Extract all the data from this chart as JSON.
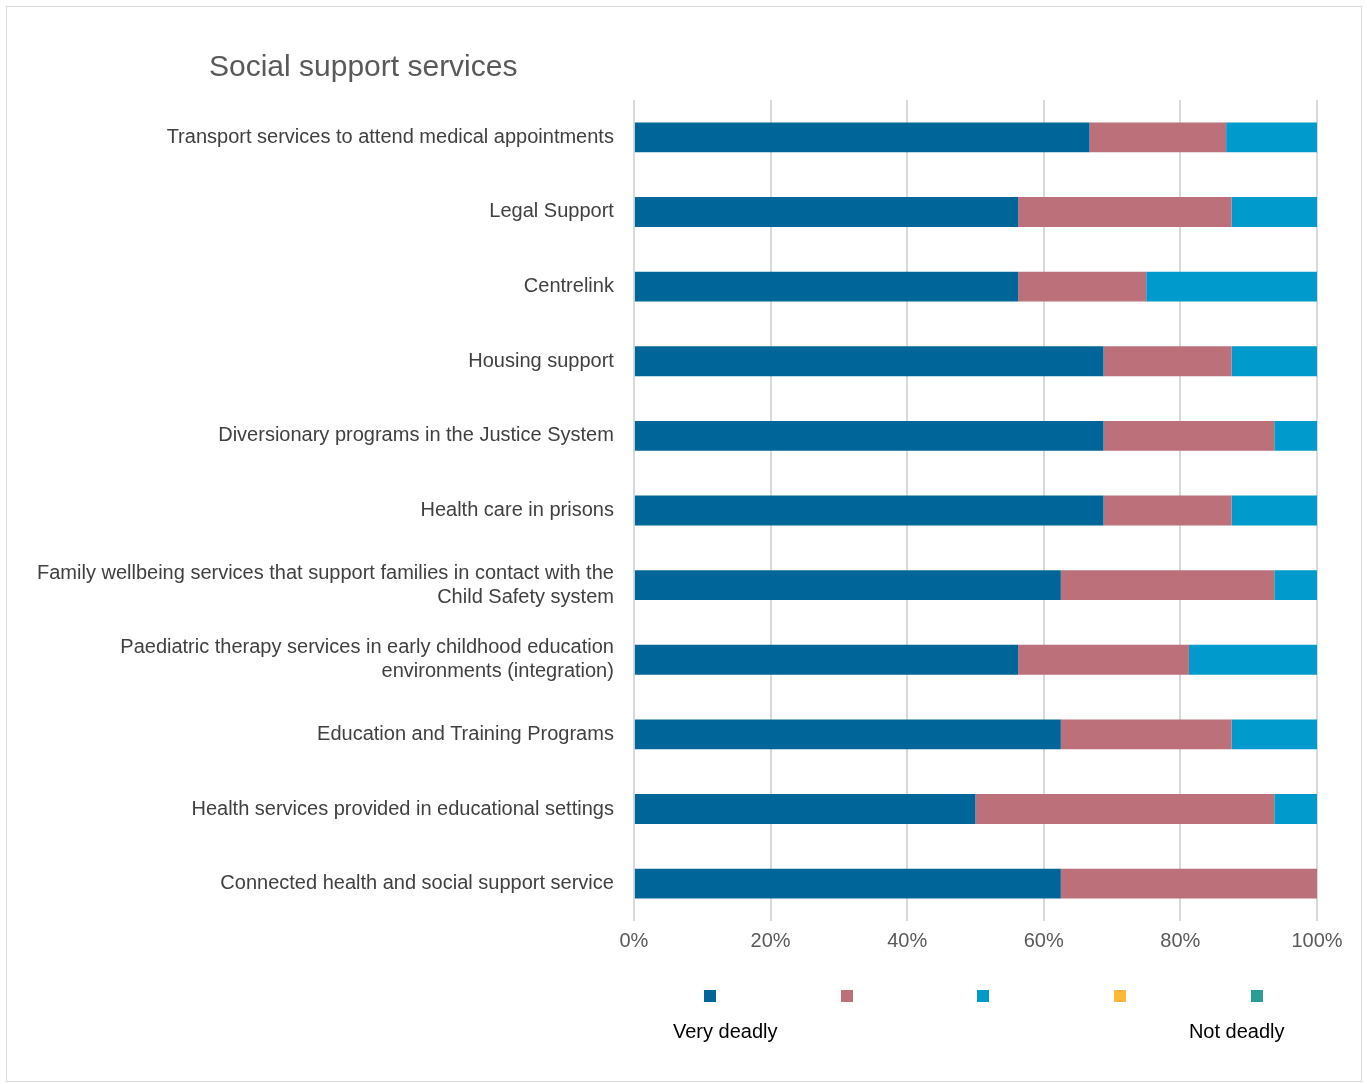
{
  "chart_data": {
    "type": "bar",
    "orientation": "horizontal",
    "stacked": true,
    "title": "Social support services",
    "categories": [
      "Transport services to attend medical appointments",
      "Legal Support",
      "Centrelink",
      "Housing support",
      "Diversionary programs in the Justice System",
      "Health care in prisons",
      "Family wellbeing services that support families in contact with the Child Safety system",
      "Paediatric therapy services in early childhood education environments (integration)",
      "Education and Training Programs",
      "Health services provided in educational settings",
      "Connected health and social support service"
    ],
    "series": [
      {
        "color": "#00669a",
        "values": [
          66.7,
          56.25,
          56.25,
          68.75,
          68.75,
          68.75,
          62.5,
          56.25,
          62.5,
          50,
          62.5
        ]
      },
      {
        "color": "#bb707a",
        "values": [
          20,
          31.25,
          18.75,
          18.75,
          25,
          18.75,
          31.25,
          25,
          25,
          43.75,
          37.5
        ]
      },
      {
        "color": "#009bcc",
        "values": [
          13.3,
          12.5,
          25,
          12.5,
          6.25,
          12.5,
          6.25,
          18.75,
          12.5,
          6.25,
          0
        ]
      },
      {
        "color": "#ffb933",
        "values": [
          0,
          0,
          0,
          0,
          0,
          0,
          0,
          0,
          0,
          0,
          0
        ]
      },
      {
        "color": "#2a9d94",
        "values": [
          0,
          0,
          0,
          0,
          0,
          0,
          0,
          0,
          0,
          0,
          0
        ]
      }
    ],
    "xlim": [
      0,
      100
    ],
    "xticks": [
      {
        "value": 0,
        "label": "0%"
      },
      {
        "value": 20,
        "label": "20%"
      },
      {
        "value": 40,
        "label": "40%"
      },
      {
        "value": 60,
        "label": "60%"
      },
      {
        "value": 80,
        "label": "80%"
      },
      {
        "value": 100,
        "label": "100%"
      }
    ],
    "grid": "x",
    "annotations": [
      "Very deadly",
      "Not deadly"
    ]
  }
}
